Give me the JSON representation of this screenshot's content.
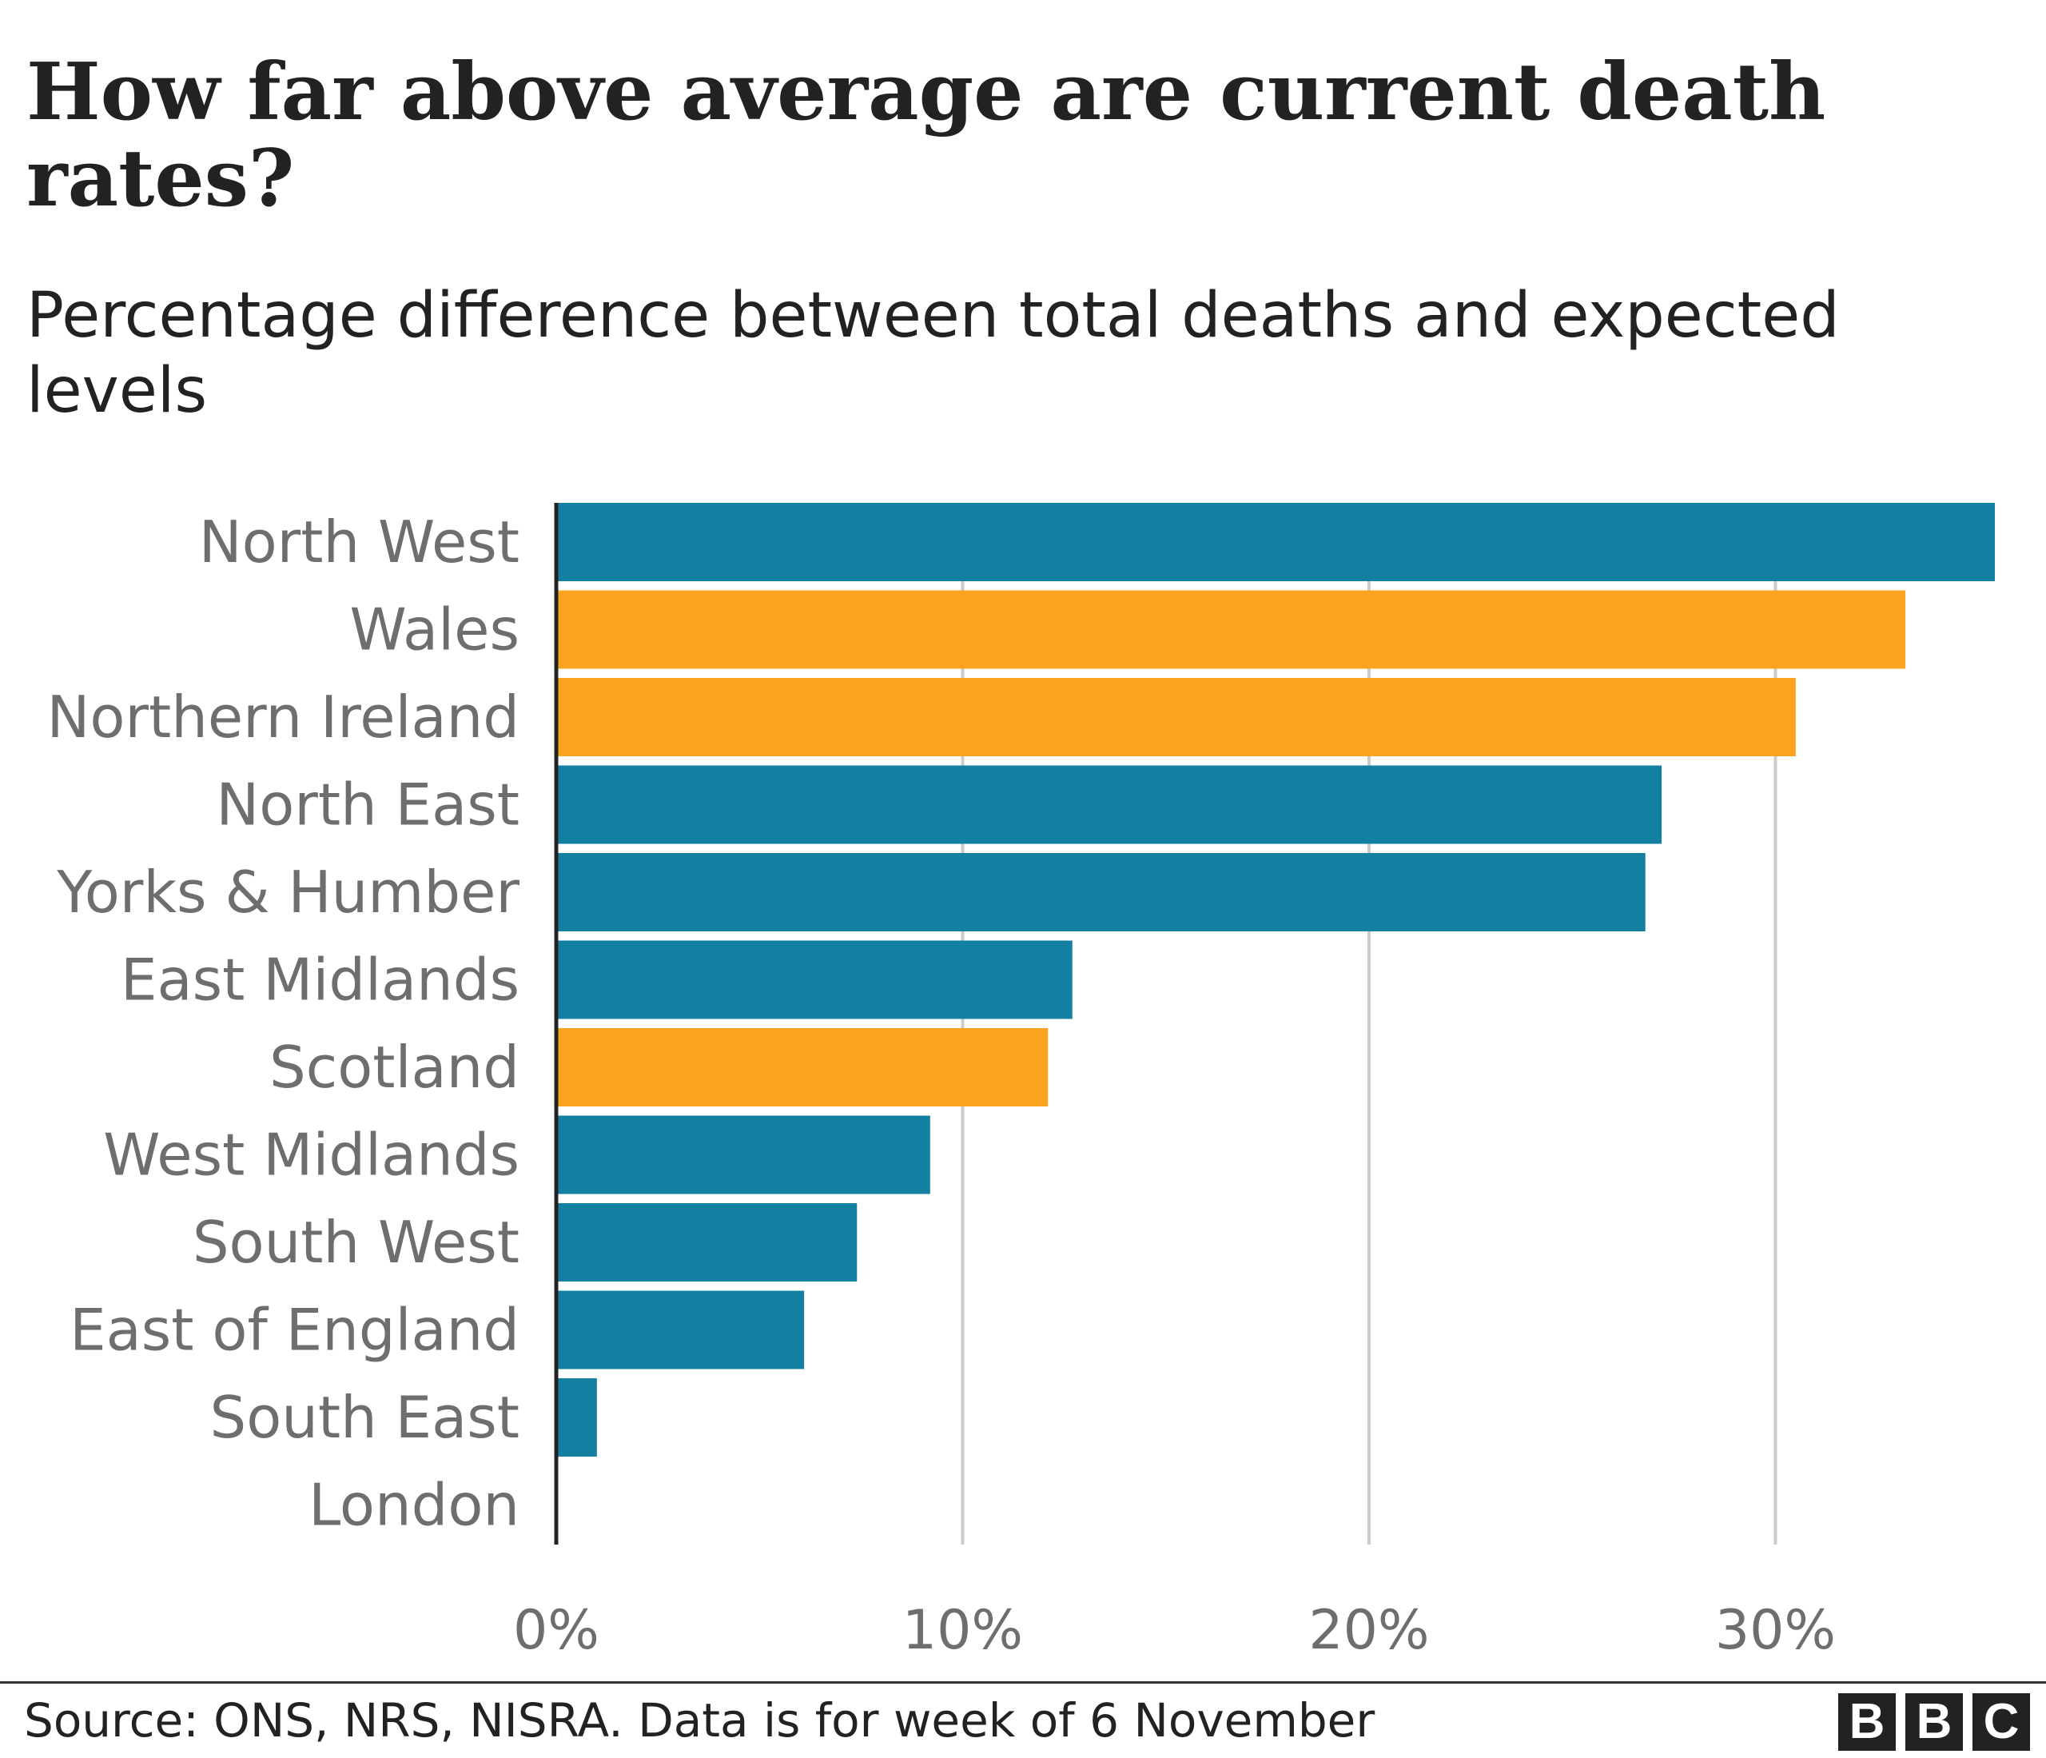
{
  "header": {
    "title": "How far above average are current death rates?",
    "subtitle": "Percentage difference between total deaths and expected levels"
  },
  "chart_data": {
    "type": "bar",
    "orientation": "horizontal",
    "categories": [
      "North West",
      "Wales",
      "Northern Ireland",
      "North East",
      "Yorks & Humber",
      "East Midlands",
      "Scotland",
      "West Midlands",
      "South West",
      "East of England",
      "South East",
      "London"
    ],
    "values": [
      35.4,
      33.2,
      30.5,
      27.2,
      26.8,
      12.7,
      12.1,
      9.2,
      7.4,
      6.1,
      1.0,
      0.0
    ],
    "bar_colors": [
      "#1380a1",
      "#fca420",
      "#fca420",
      "#1380a1",
      "#1380a1",
      "#1380a1",
      "#fca420",
      "#1380a1",
      "#1380a1",
      "#1380a1",
      "#1380a1",
      "#1380a1"
    ],
    "xlim": [
      0,
      35.4
    ],
    "xticks": [
      0,
      10,
      20,
      30
    ],
    "xtick_labels": [
      "0%",
      "10%",
      "20%",
      "30%"
    ],
    "grid": true,
    "gridline_color": "#cbcbcb",
    "xlabel": "",
    "ylabel": ""
  },
  "footer": {
    "source": "Source: ONS, NRS, NISRA. Data is for week of 6 November",
    "logo_letters": [
      "B",
      "B",
      "C"
    ]
  }
}
